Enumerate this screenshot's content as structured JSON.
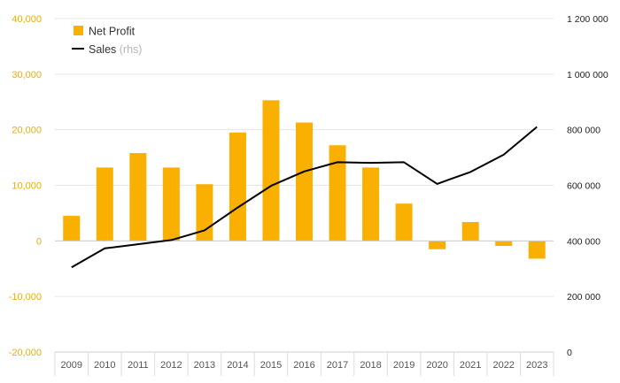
{
  "chart_data": {
    "type": "bar",
    "categories": [
      "2009",
      "2010",
      "2011",
      "2012",
      "2013",
      "2014",
      "2015",
      "2016",
      "2017",
      "2018",
      "2019",
      "2020",
      "2021",
      "2022",
      "2023"
    ],
    "series": [
      {
        "name": "Net Profit",
        "type": "bar",
        "axis": "left",
        "color": "#f9b000",
        "values": [
          4500,
          13200,
          15800,
          13200,
          10200,
          19500,
          25300,
          21300,
          17200,
          13200,
          6700,
          -1500,
          3400,
          -900,
          -3200
        ]
      },
      {
        "name": "Sales",
        "name_suffix": "(rhs)",
        "type": "line",
        "axis": "right",
        "color": "#000000",
        "values": [
          305000,
          373000,
          388000,
          403000,
          438000,
          520000,
          598000,
          650000,
          683000,
          681000,
          683000,
          605000,
          648000,
          710000,
          810000
        ]
      }
    ],
    "left_axis": {
      "min": -20000,
      "max": 40000,
      "step": 10000,
      "ticks": [
        "-20,000",
        "-10,000",
        "0",
        "10,000",
        "20,000",
        "30,000",
        "40,000"
      ],
      "tick_color": "#f0ad00"
    },
    "right_axis": {
      "min": 0,
      "max": 1200000,
      "step": 200000,
      "ticks": [
        "0",
        "200 000",
        "400 000",
        "600 000",
        "800 000",
        "1 000 000",
        "1 200 000"
      ]
    },
    "grid": true,
    "legend_position": "top-left"
  }
}
